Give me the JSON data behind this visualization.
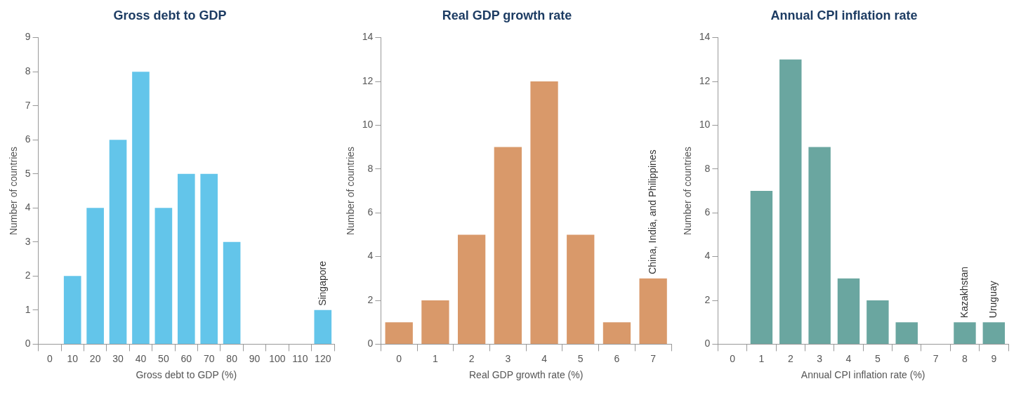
{
  "chart_data": [
    {
      "type": "bar",
      "title": "Gross debt to GDP",
      "xlabel": "Gross debt to GDP (%)",
      "ylabel": "Number of countries",
      "categories": [
        "0",
        "10",
        "20",
        "30",
        "40",
        "50",
        "60",
        "70",
        "80",
        "90",
        "100",
        "110",
        "120"
      ],
      "values": [
        0,
        2,
        4,
        6,
        8,
        4,
        5,
        5,
        3,
        0,
        0,
        0,
        1
      ],
      "color": "#63c5ea",
      "ylim": [
        0,
        9
      ],
      "yticks": [
        0,
        1,
        2,
        3,
        4,
        5,
        6,
        7,
        8,
        9
      ],
      "grid": false,
      "annotations": [
        {
          "text": "Singapore",
          "x": "120",
          "y": 1
        }
      ]
    },
    {
      "type": "bar",
      "title": "Real GDP growth rate",
      "xlabel": "Real GDP growth rate (%)",
      "ylabel": "Number of countries",
      "categories": [
        "0",
        "1",
        "2",
        "3",
        "4",
        "5",
        "6",
        "7"
      ],
      "values": [
        1,
        2,
        5,
        9,
        12,
        5,
        1,
        3
      ],
      "color": "#d9996a",
      "ylim": [
        0,
        14
      ],
      "yticks": [
        0,
        2,
        4,
        6,
        8,
        10,
        12,
        14
      ],
      "grid": false,
      "annotations": [
        {
          "text": "China, India, and Philippines",
          "x": "7",
          "y": 3
        }
      ]
    },
    {
      "type": "bar",
      "title": "Annual CPI inflation rate",
      "xlabel": "Annual CPI inflation rate (%)",
      "ylabel": "Number of countries",
      "categories": [
        "0",
        "1",
        "2",
        "3",
        "4",
        "5",
        "6",
        "7",
        "8",
        "9"
      ],
      "values": [
        0,
        7,
        13,
        9,
        3,
        2,
        1,
        0,
        1,
        1
      ],
      "color": "#6aa6a0",
      "ylim": [
        0,
        14
      ],
      "yticks": [
        0,
        2,
        4,
        6,
        8,
        10,
        12,
        14
      ],
      "grid": false,
      "annotations": [
        {
          "text": "Kazakhstan",
          "x": "8",
          "y": 1
        },
        {
          "text": "Uruguay",
          "x": "9",
          "y": 1
        }
      ]
    }
  ]
}
